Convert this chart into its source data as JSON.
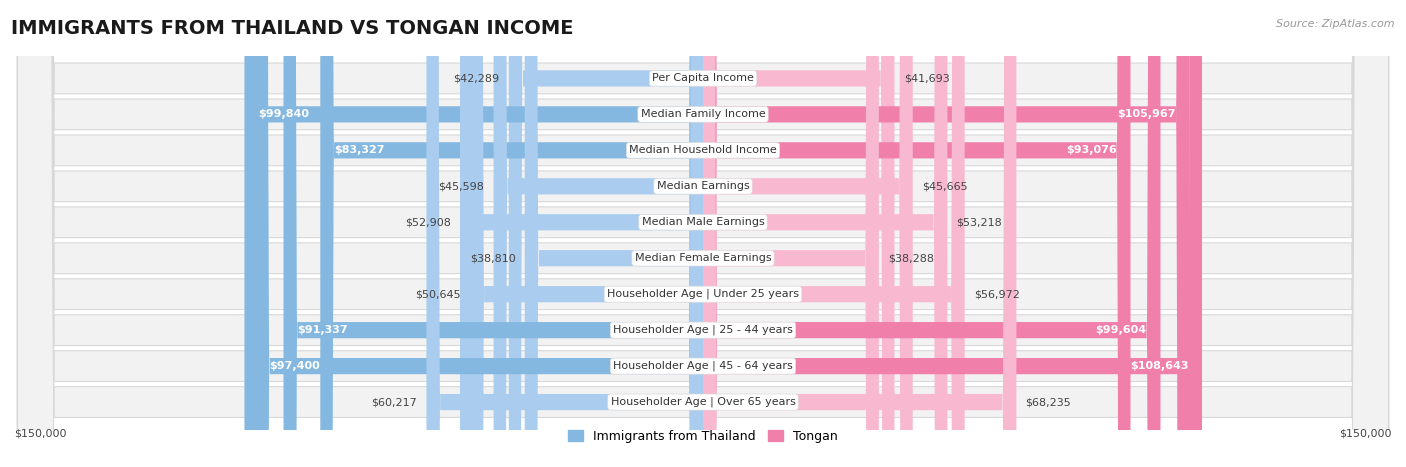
{
  "title": "IMMIGRANTS FROM THAILAND VS TONGAN INCOME",
  "source": "Source: ZipAtlas.com",
  "categories": [
    "Per Capita Income",
    "Median Family Income",
    "Median Household Income",
    "Median Earnings",
    "Median Male Earnings",
    "Median Female Earnings",
    "Householder Age | Under 25 years",
    "Householder Age | 25 - 44 years",
    "Householder Age | 45 - 64 years",
    "Householder Age | Over 65 years"
  ],
  "thailand_values": [
    42289,
    99840,
    83327,
    45598,
    52908,
    38810,
    50645,
    91337,
    97400,
    60217
  ],
  "tongan_values": [
    41693,
    105967,
    93076,
    45665,
    53218,
    38288,
    56972,
    99604,
    108643,
    68235
  ],
  "thailand_label_inside": [
    false,
    true,
    true,
    false,
    false,
    false,
    false,
    true,
    true,
    false
  ],
  "tongan_label_inside": [
    false,
    true,
    true,
    false,
    false,
    false,
    false,
    true,
    true,
    false
  ],
  "thailand_color": "#85b8e0",
  "tongan_color": "#f080aa",
  "thailand_color_light": "#aaccee",
  "tongan_color_light": "#f8b8d0",
  "max_val": 150000,
  "background_color": "#ffffff",
  "row_bg_color": "#f2f2f2",
  "row_border_color": "#d8d8d8",
  "title_fontsize": 14,
  "bar_label_fontsize": 8,
  "category_fontsize": 8,
  "legend_fontsize": 9,
  "source_fontsize": 8,
  "label_dark_color": "#444444",
  "label_white_color": "#ffffff",
  "legend_thailand_label": "Immigrants from Thailand",
  "legend_tongan_label": "Tongan"
}
